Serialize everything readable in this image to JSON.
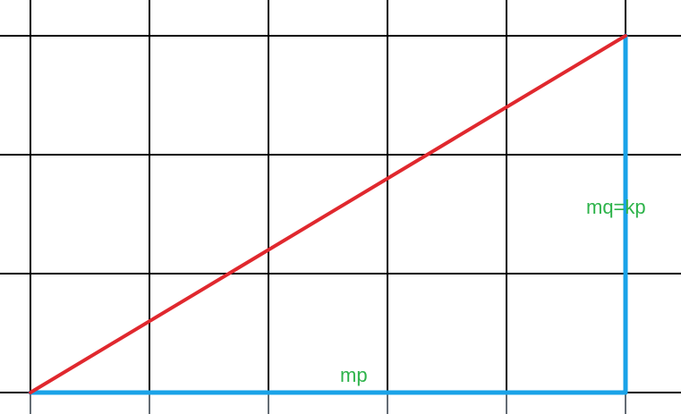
{
  "labels": {
    "base": "mp",
    "height": "mq=kp"
  },
  "colors": {
    "background": "#ffffff",
    "grid": "#000000",
    "hypotenuse": "#e0282e",
    "legs": "#1aa3e8",
    "label_text": "#2db34a"
  }
}
